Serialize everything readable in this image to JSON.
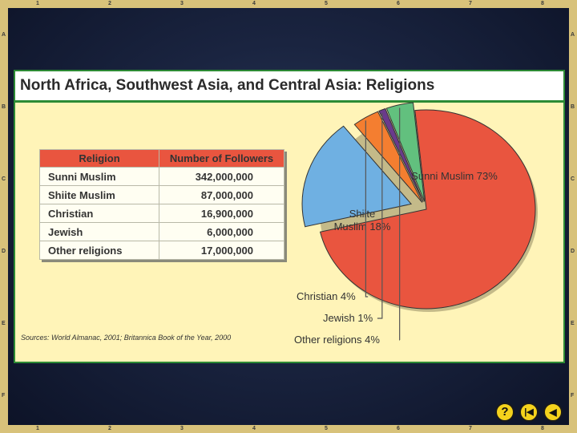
{
  "frame": {
    "columns": [
      "1",
      "2",
      "3",
      "4",
      "5",
      "6",
      "7",
      "8"
    ],
    "rows": [
      "A",
      "B",
      "C",
      "D",
      "E",
      "F"
    ]
  },
  "title": "North Africa, Southwest Asia, and Central Asia: Religions",
  "table": {
    "headers": [
      "Religion",
      "Number of Followers"
    ],
    "rows": [
      {
        "religion": "Sunni Muslim",
        "followers": "342,000,000"
      },
      {
        "religion": "Shiite Muslim",
        "followers": "87,000,000"
      },
      {
        "religion": "Christian",
        "followers": "16,900,000"
      },
      {
        "religion": "Jewish",
        "followers": "6,000,000"
      },
      {
        "religion": "Other religions",
        "followers": "17,000,000"
      }
    ]
  },
  "sources": "Sources: World Almanac, 2001; Britannica Book of the Year, 2000",
  "chart_data": {
    "type": "pie",
    "title": "",
    "slices": [
      {
        "label": "Sunni Muslim",
        "value": 73,
        "display": "Sunni Muslim 73%",
        "color": "#e9553f"
      },
      {
        "label": "Shiite Muslim",
        "value": 18,
        "display_lines": [
          "Shiite",
          "Muslim 18%"
        ],
        "color": "#6fb0e2"
      },
      {
        "label": "Christian",
        "value": 4,
        "display": "Christian 4%",
        "color": "#f47e30"
      },
      {
        "label": "Jewish",
        "value": 1,
        "display": "Jewish 1%",
        "color": "#6a3a8c"
      },
      {
        "label": "Other religions",
        "value": 4,
        "display": "Other religions 4%",
        "color": "#62c07e"
      }
    ],
    "legend": "none"
  },
  "nav": {
    "help_glyph": "?",
    "back_glyph": "|◀",
    "prev_glyph": "◀",
    "accent": "#f4d21c"
  }
}
